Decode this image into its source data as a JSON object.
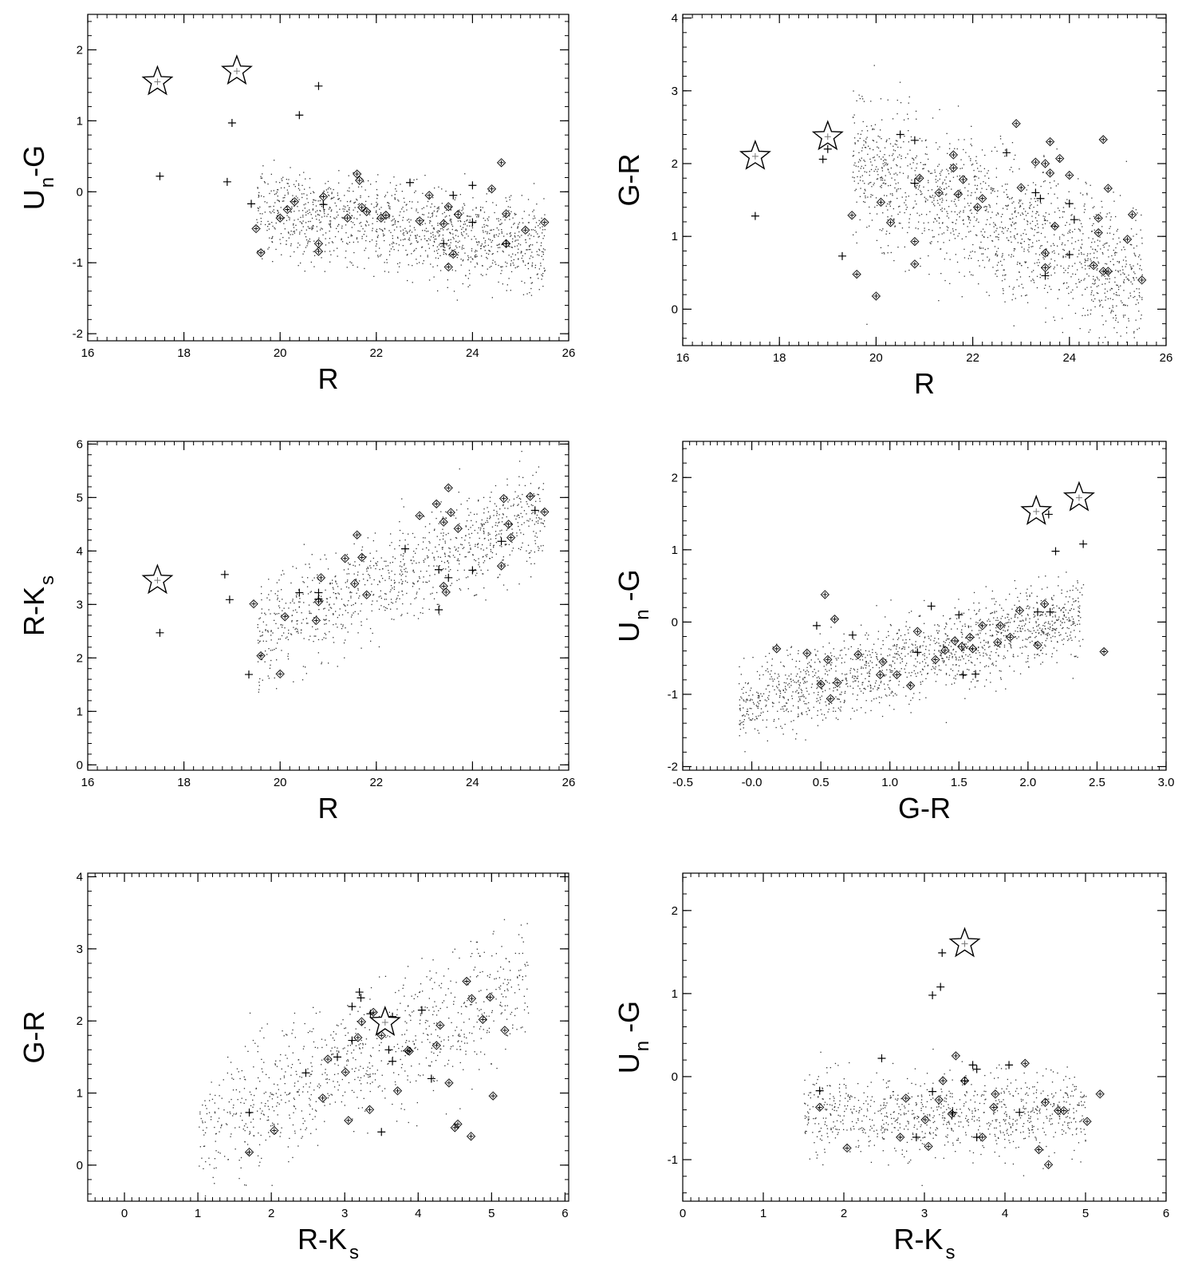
{
  "figure": {
    "panels": 6,
    "layout": "3 rows x 2 columns"
  },
  "chart_data": [
    {
      "id": "p1",
      "type": "scatter",
      "title": "",
      "xlabel": "R",
      "ylabel": {
        "main": "U",
        "sub": "n",
        "rest": "-G"
      },
      "xlim": [
        16,
        26
      ],
      "ylim": [
        -2.1,
        2.5
      ],
      "xticks": [
        16,
        18,
        20,
        22,
        24,
        26
      ],
      "yticks": [
        -2,
        -1,
        0,
        1,
        2
      ],
      "xtick_labels": [
        "16",
        "18",
        "20",
        "22",
        "24",
        "26"
      ],
      "ytick_labels": [
        "-2",
        "-1",
        "0",
        "1",
        "2"
      ],
      "grid": false,
      "legend": "none",
      "background_cloud": {
        "n": 1300,
        "x_range": [
          19.5,
          25.5
        ],
        "y_center": -0.5,
        "y_spread": 0.9,
        "trend": "slightly decreasing"
      },
      "stars": [
        [
          17.45,
          1.55
        ],
        [
          19.1,
          1.7
        ]
      ],
      "plus": [
        [
          17.5,
          0.22
        ],
        [
          18.9,
          0.14
        ],
        [
          19.0,
          0.97
        ],
        [
          19.4,
          -0.17
        ],
        [
          20.4,
          1.08
        ],
        [
          20.8,
          1.49
        ],
        [
          20.9,
          -0.18
        ],
        [
          22.7,
          0.13
        ],
        [
          23.4,
          -0.73
        ],
        [
          23.6,
          -0.05
        ],
        [
          24.0,
          0.09
        ],
        [
          24.0,
          -0.43
        ],
        [
          24.7,
          -0.73
        ]
      ],
      "diamonds": [
        [
          19.5,
          -0.52
        ],
        [
          19.6,
          -0.86
        ],
        [
          20.0,
          -0.37
        ],
        [
          20.15,
          -0.25
        ],
        [
          20.3,
          -0.14
        ],
        [
          20.8,
          -0.73
        ],
        [
          20.8,
          -0.84
        ],
        [
          20.9,
          -0.07
        ],
        [
          21.4,
          -0.37
        ],
        [
          21.6,
          0.25
        ],
        [
          21.65,
          0.16
        ],
        [
          21.7,
          -0.22
        ],
        [
          21.8,
          -0.28
        ],
        [
          22.1,
          -0.37
        ],
        [
          22.2,
          -0.33
        ],
        [
          22.9,
          -0.41
        ],
        [
          23.1,
          -0.05
        ],
        [
          23.4,
          -0.45
        ],
        [
          23.5,
          -1.06
        ],
        [
          23.5,
          -0.21
        ],
        [
          23.6,
          -0.88
        ],
        [
          23.7,
          -0.32
        ],
        [
          24.4,
          0.04
        ],
        [
          24.6,
          0.41
        ],
        [
          24.7,
          -0.31
        ],
        [
          24.7,
          -0.73
        ],
        [
          25.1,
          -0.54
        ],
        [
          25.5,
          -0.43
        ]
      ]
    },
    {
      "id": "p2",
      "type": "scatter",
      "title": "",
      "xlabel": "R",
      "ylabel": {
        "main": "G-R",
        "sub": "",
        "rest": ""
      },
      "xlim": [
        16,
        26
      ],
      "ylim": [
        -0.5,
        4.05
      ],
      "xticks": [
        16,
        18,
        20,
        22,
        24,
        26
      ],
      "yticks": [
        0,
        1,
        2,
        3,
        4
      ],
      "xtick_labels": [
        "16",
        "18",
        "20",
        "22",
        "24",
        "26"
      ],
      "ytick_labels": [
        "0",
        "1",
        "2",
        "3",
        "4"
      ],
      "grid": false,
      "legend": "none",
      "background_cloud": {
        "n": 1500,
        "x_range": [
          19.5,
          25.5
        ],
        "y_center": 1.2,
        "y_spread": 1.4,
        "trend": "decreasing"
      },
      "stars": [
        [
          17.5,
          2.1
        ],
        [
          19.0,
          2.37
        ]
      ],
      "plus": [
        [
          17.5,
          1.28
        ],
        [
          18.9,
          2.06
        ],
        [
          19.0,
          2.2
        ],
        [
          19.3,
          0.73
        ],
        [
          20.5,
          2.4
        ],
        [
          20.8,
          2.32
        ],
        [
          20.8,
          1.73
        ],
        [
          22.7,
          2.15
        ],
        [
          23.3,
          1.6
        ],
        [
          23.4,
          1.52
        ],
        [
          23.5,
          0.46
        ],
        [
          24.0,
          1.45
        ],
        [
          24.0,
          0.75
        ],
        [
          24.1,
          1.23
        ]
      ],
      "diamonds": [
        [
          19.5,
          1.29
        ],
        [
          19.6,
          0.48
        ],
        [
          20.0,
          0.18
        ],
        [
          20.1,
          1.47
        ],
        [
          20.3,
          1.19
        ],
        [
          20.8,
          0.93
        ],
        [
          20.8,
          0.62
        ],
        [
          20.9,
          1.8
        ],
        [
          21.3,
          1.6
        ],
        [
          21.6,
          2.12
        ],
        [
          21.6,
          1.94
        ],
        [
          21.7,
          1.58
        ],
        [
          21.8,
          1.78
        ],
        [
          22.1,
          1.4
        ],
        [
          22.2,
          1.52
        ],
        [
          22.9,
          2.55
        ],
        [
          23.0,
          1.67
        ],
        [
          23.3,
          2.02
        ],
        [
          23.5,
          2.0
        ],
        [
          23.5,
          0.77
        ],
        [
          23.5,
          0.57
        ],
        [
          23.6,
          1.87
        ],
        [
          23.6,
          2.3
        ],
        [
          23.7,
          1.14
        ],
        [
          23.8,
          2.07
        ],
        [
          24.0,
          1.84
        ],
        [
          24.5,
          0.6
        ],
        [
          24.6,
          1.25
        ],
        [
          24.6,
          1.05
        ],
        [
          24.7,
          0.52
        ],
        [
          24.7,
          2.33
        ],
        [
          24.8,
          0.52
        ],
        [
          24.8,
          1.66
        ],
        [
          25.2,
          0.96
        ],
        [
          25.3,
          1.3
        ],
        [
          25.5,
          0.4
        ]
      ]
    },
    {
      "id": "p3",
      "type": "scatter",
      "title": "",
      "xlabel": "R",
      "ylabel": {
        "main": "R-K",
        "sub": "s",
        "rest": ""
      },
      "xlim": [
        16,
        26
      ],
      "ylim": [
        -0.1,
        6.05
      ],
      "xticks": [
        16,
        18,
        20,
        22,
        24,
        26
      ],
      "yticks": [
        0,
        1,
        2,
        3,
        4,
        5,
        6
      ],
      "xtick_labels": [
        "16",
        "18",
        "20",
        "22",
        "24",
        "26"
      ],
      "ytick_labels": [
        "0",
        "1",
        "2",
        "3",
        "4",
        "5",
        "6"
      ],
      "grid": false,
      "legend": "none",
      "background_cloud": {
        "n": 1000,
        "x_range": [
          19.5,
          25.5
        ],
        "y_center": 3.6,
        "y_spread": 1.4,
        "trend": "increasing"
      },
      "stars": [
        [
          17.45,
          3.45
        ]
      ],
      "plus": [
        [
          17.5,
          2.47
        ],
        [
          18.85,
          3.56
        ],
        [
          18.95,
          3.09
        ],
        [
          19.35,
          1.69
        ],
        [
          20.4,
          3.22
        ],
        [
          20.8,
          3.1
        ],
        [
          20.8,
          3.22
        ],
        [
          22.6,
          4.04
        ],
        [
          23.3,
          3.65
        ],
        [
          23.3,
          2.9
        ],
        [
          23.5,
          3.5
        ],
        [
          24.0,
          3.64
        ],
        [
          24.6,
          4.18
        ],
        [
          25.3,
          4.76
        ]
      ],
      "diamonds": [
        [
          19.45,
          3.01
        ],
        [
          19.6,
          2.04
        ],
        [
          20.0,
          1.7
        ],
        [
          20.1,
          2.77
        ],
        [
          20.75,
          2.7
        ],
        [
          20.8,
          3.05
        ],
        [
          20.85,
          3.5
        ],
        [
          21.35,
          3.86
        ],
        [
          21.55,
          3.39
        ],
        [
          21.6,
          4.3
        ],
        [
          21.7,
          3.88
        ],
        [
          21.8,
          3.18
        ],
        [
          22.9,
          4.66
        ],
        [
          23.25,
          4.88
        ],
        [
          23.4,
          4.54
        ],
        [
          23.4,
          3.34
        ],
        [
          23.45,
          3.23
        ],
        [
          23.5,
          5.18
        ],
        [
          23.55,
          4.72
        ],
        [
          23.7,
          4.42
        ],
        [
          24.6,
          3.72
        ],
        [
          24.65,
          4.98
        ],
        [
          24.75,
          4.5
        ],
        [
          24.8,
          4.25
        ],
        [
          25.2,
          5.02
        ],
        [
          25.5,
          4.73
        ]
      ]
    },
    {
      "id": "p4",
      "type": "scatter",
      "title": "",
      "xlabel": "G-R",
      "ylabel": {
        "main": "U",
        "sub": "n",
        "rest": " -G"
      },
      "xlim": [
        -0.5,
        3.0
      ],
      "ylim": [
        -2.05,
        2.5
      ],
      "xticks": [
        -0.5,
        0.0,
        0.5,
        1.0,
        1.5,
        2.0,
        2.5,
        3.0
      ],
      "yticks": [
        -2,
        -1,
        0,
        1,
        2
      ],
      "xtick_labels": [
        "-0.5",
        "-0.0",
        "0.5",
        "1.0",
        "1.5",
        "2.0",
        "2.5",
        "3.0"
      ],
      "ytick_labels": [
        "-2",
        "-1",
        "0",
        "1",
        "2"
      ],
      "grid": false,
      "legend": "none",
      "background_cloud": {
        "n": 1500,
        "x_range": [
          -0.1,
          2.4
        ],
        "y_center": -0.5,
        "y_spread": 0.8,
        "trend": "increasing"
      },
      "stars": [
        [
          2.06,
          1.53
        ],
        [
          2.37,
          1.72
        ]
      ],
      "plus": [
        [
          0.47,
          -0.05
        ],
        [
          0.73,
          -0.18
        ],
        [
          1.2,
          -0.42
        ],
        [
          1.3,
          0.22
        ],
        [
          1.5,
          0.1
        ],
        [
          1.53,
          -0.73
        ],
        [
          1.62,
          -0.72
        ],
        [
          2.07,
          0.14
        ],
        [
          2.15,
          1.49
        ],
        [
          2.16,
          0.14
        ],
        [
          2.2,
          0.98
        ],
        [
          2.4,
          1.08
        ]
      ],
      "diamonds": [
        [
          0.18,
          -0.37
        ],
        [
          0.4,
          -0.43
        ],
        [
          0.5,
          -0.86
        ],
        [
          0.53,
          0.38
        ],
        [
          0.55,
          -0.52
        ],
        [
          0.57,
          -1.06
        ],
        [
          0.6,
          0.04
        ],
        [
          0.62,
          -0.84
        ],
        [
          0.77,
          -0.45
        ],
        [
          0.93,
          -0.73
        ],
        [
          0.95,
          -0.55
        ],
        [
          1.05,
          -0.73
        ],
        [
          1.15,
          -0.88
        ],
        [
          1.2,
          -0.13
        ],
        [
          1.33,
          -0.52
        ],
        [
          1.4,
          -0.39
        ],
        [
          1.47,
          -0.26
        ],
        [
          1.52,
          -0.34
        ],
        [
          1.58,
          -0.21
        ],
        [
          1.6,
          -0.37
        ],
        [
          1.67,
          -0.05
        ],
        [
          1.78,
          -0.28
        ],
        [
          1.8,
          -0.05
        ],
        [
          1.87,
          -0.21
        ],
        [
          1.94,
          0.16
        ],
        [
          2.07,
          -0.32
        ],
        [
          2.12,
          0.25
        ],
        [
          2.55,
          -0.41
        ]
      ]
    },
    {
      "id": "p5",
      "type": "scatter",
      "title": "",
      "xlabel": {
        "main": "R-K",
        "sub": "s"
      },
      "ylabel": {
        "main": "G-R",
        "sub": "",
        "rest": ""
      },
      "xlim": [
        -0.5,
        6.05
      ],
      "ylim": [
        -0.5,
        4.05
      ],
      "xticks": [
        0,
        1,
        2,
        3,
        4,
        5,
        6
      ],
      "yticks": [
        0,
        1,
        2,
        3,
        4
      ],
      "xtick_labels": [
        "0",
        "1",
        "2",
        "3",
        "4",
        "5",
        "6"
      ],
      "ytick_labels": [
        "0",
        "1",
        "2",
        "3",
        "4"
      ],
      "grid": false,
      "legend": "none",
      "background_cloud": {
        "n": 900,
        "x_range": [
          1.0,
          5.5
        ],
        "y_center": 1.5,
        "y_spread": 1.3,
        "trend": "increasing"
      },
      "stars": [
        [
          3.55,
          1.98
        ]
      ],
      "plus": [
        [
          1.7,
          0.73
        ],
        [
          2.47,
          1.28
        ],
        [
          2.9,
          1.5
        ],
        [
          3.1,
          2.2
        ],
        [
          3.1,
          1.73
        ],
        [
          3.2,
          2.4
        ],
        [
          3.22,
          2.32
        ],
        [
          3.35,
          2.1
        ],
        [
          3.5,
          0.46
        ],
        [
          3.6,
          1.6
        ],
        [
          3.65,
          1.44
        ],
        [
          3.65,
          2.06
        ],
        [
          4.05,
          2.15
        ],
        [
          4.18,
          1.2
        ]
      ],
      "diamonds": [
        [
          1.7,
          0.18
        ],
        [
          2.04,
          0.48
        ],
        [
          2.7,
          0.93
        ],
        [
          2.77,
          1.47
        ],
        [
          3.01,
          1.29
        ],
        [
          3.05,
          0.62
        ],
        [
          3.18,
          1.77
        ],
        [
          3.23,
          1.99
        ],
        [
          3.34,
          0.77
        ],
        [
          3.39,
          2.12
        ],
        [
          3.5,
          1.8
        ],
        [
          3.72,
          1.03
        ],
        [
          3.86,
          1.59
        ],
        [
          3.88,
          1.58
        ],
        [
          4.25,
          1.66
        ],
        [
          4.3,
          1.94
        ],
        [
          4.42,
          1.14
        ],
        [
          4.5,
          0.52
        ],
        [
          4.54,
          0.57
        ],
        [
          4.66,
          2.55
        ],
        [
          4.72,
          0.4
        ],
        [
          4.73,
          2.31
        ],
        [
          4.88,
          2.02
        ],
        [
          4.98,
          2.33
        ],
        [
          5.02,
          0.96
        ],
        [
          5.18,
          1.87
        ]
      ]
    },
    {
      "id": "p6",
      "type": "scatter",
      "title": "",
      "xlabel": {
        "main": "R-K",
        "sub": "s"
      },
      "ylabel": {
        "main": "U",
        "sub": "n",
        "rest": " -G"
      },
      "xlim": [
        0,
        6
      ],
      "ylim": [
        -1.5,
        2.45
      ],
      "xticks": [
        0,
        1,
        2,
        3,
        4,
        5,
        6
      ],
      "yticks": [
        -1,
        0,
        1,
        2
      ],
      "xtick_labels": [
        "0",
        "1",
        "2",
        "3",
        "4",
        "5",
        "6"
      ],
      "ytick_labels": [
        "-1",
        "0",
        "1",
        "2"
      ],
      "grid": false,
      "legend": "none",
      "background_cloud": {
        "n": 900,
        "x_range": [
          1.5,
          5.0
        ],
        "y_center": -0.45,
        "y_spread": 0.7,
        "trend": "flat"
      },
      "stars": [
        [
          3.5,
          1.6
        ]
      ],
      "plus": [
        [
          1.7,
          -0.17
        ],
        [
          2.47,
          0.22
        ],
        [
          2.9,
          -0.73
        ],
        [
          3.1,
          0.98
        ],
        [
          3.1,
          -0.18
        ],
        [
          3.2,
          1.08
        ],
        [
          3.22,
          1.49
        ],
        [
          3.35,
          -0.43
        ],
        [
          3.5,
          -0.05
        ],
        [
          3.6,
          0.14
        ],
        [
          3.65,
          0.09
        ],
        [
          3.65,
          -0.73
        ],
        [
          4.05,
          0.14
        ],
        [
          4.18,
          -0.43
        ]
      ],
      "diamonds": [
        [
          1.7,
          -0.37
        ],
        [
          2.04,
          -0.86
        ],
        [
          2.7,
          -0.73
        ],
        [
          2.77,
          -0.26
        ],
        [
          3.01,
          -0.52
        ],
        [
          3.05,
          -0.84
        ],
        [
          3.18,
          -0.28
        ],
        [
          3.23,
          -0.05
        ],
        [
          3.34,
          -0.45
        ],
        [
          3.39,
          0.25
        ],
        [
          3.5,
          -0.05
        ],
        [
          3.72,
          -0.73
        ],
        [
          3.86,
          -0.37
        ],
        [
          3.88,
          -0.21
        ],
        [
          4.25,
          0.16
        ],
        [
          4.42,
          -0.88
        ],
        [
          4.5,
          -0.31
        ],
        [
          4.54,
          -1.06
        ],
        [
          4.66,
          -0.41
        ],
        [
          4.73,
          -0.41
        ],
        [
          5.02,
          -0.54
        ],
        [
          5.18,
          -0.21
        ]
      ]
    }
  ]
}
